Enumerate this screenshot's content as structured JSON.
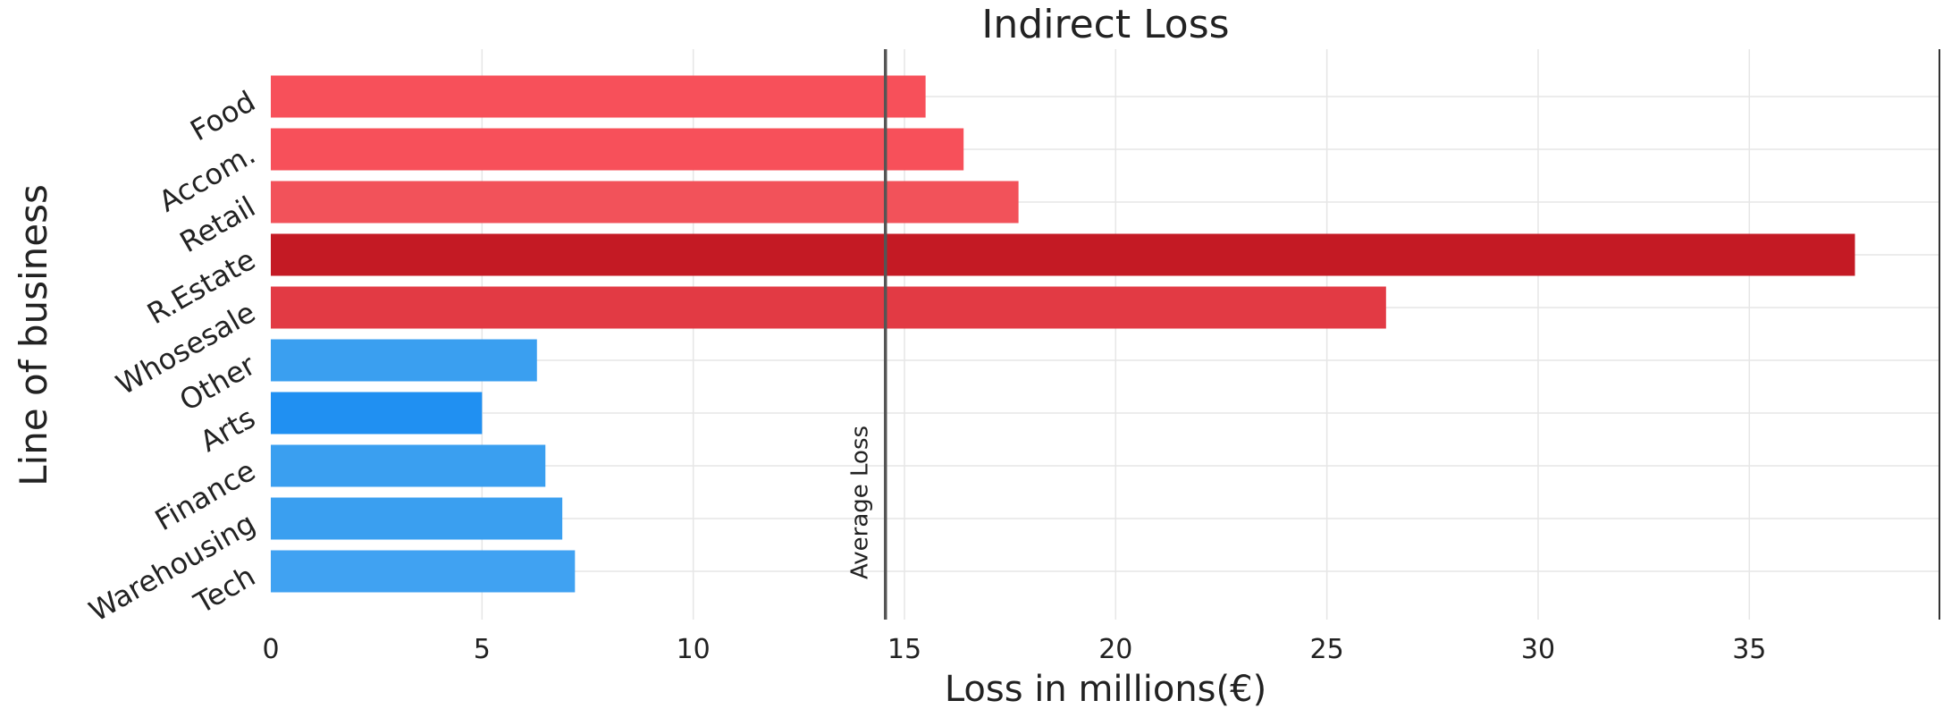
{
  "chart_data": {
    "type": "bar",
    "orientation": "horizontal",
    "title": "Indirect Loss",
    "xlabel": "Loss in millions(€)",
    "ylabel": "Line of business",
    "xlim": [
      0,
      39.5
    ],
    "xticks": [
      0,
      5,
      10,
      15,
      20,
      25,
      30,
      35
    ],
    "grid": true,
    "categories": [
      "Food",
      "Accom.",
      "Retail",
      "R.Estate",
      "Whosesale",
      "Other",
      "Arts",
      "Finance",
      "Warehousing",
      "Tech"
    ],
    "values": [
      15.5,
      16.4,
      17.7,
      37.5,
      26.4,
      6.3,
      5.0,
      6.5,
      6.9,
      7.2
    ],
    "colors": [
      "#f7505a",
      "#f7505a",
      "#f2525a",
      "#c41a24",
      "#e23a44",
      "#3a9ff0",
      "#2090f2",
      "#3a9ff0",
      "#3a9ff0",
      "#40a2f2"
    ],
    "reference_line": {
      "value": 14.55,
      "label": "Average Loss",
      "color": "#555555"
    }
  }
}
